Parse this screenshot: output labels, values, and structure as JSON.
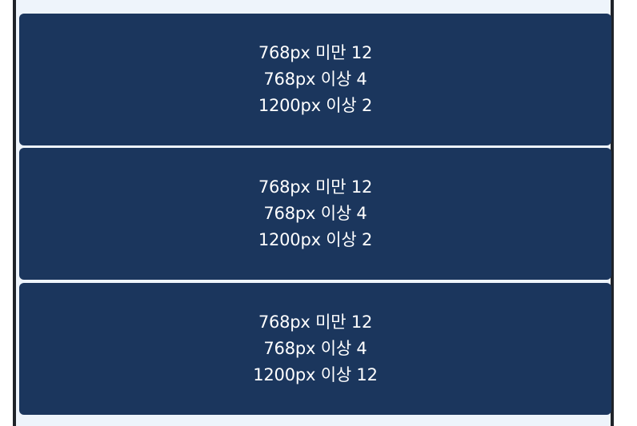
{
  "cards": [
    {
      "lines": [
        "768px 미만 12",
        "768px 이상 4",
        "1200px 이상 2"
      ]
    },
    {
      "lines": [
        "768px 미만 12",
        "768px 이상 4",
        "1200px 이상 2"
      ]
    },
    {
      "lines": [
        "768px 미만 12",
        "768px 이상 4",
        "1200px 이상 12"
      ]
    }
  ],
  "colors": {
    "card_bg": "#1b365d",
    "page_bg": "#eef4fb",
    "border": "#1f2329",
    "text": "#ffffff"
  }
}
